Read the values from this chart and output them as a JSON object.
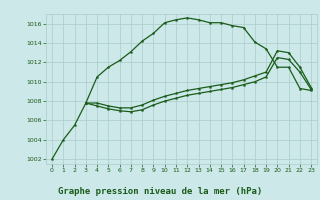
{
  "title": "Graphe pression niveau de la mer (hPa)",
  "bg_color": "#cce8e8",
  "grid_color": "#aacccc",
  "line_color": "#1a5c1a",
  "xlim": [
    -0.5,
    23.5
  ],
  "ylim": [
    1001.5,
    1017.0
  ],
  "yticks": [
    1002,
    1004,
    1006,
    1008,
    1010,
    1012,
    1014,
    1016
  ],
  "xticks": [
    0,
    1,
    2,
    3,
    4,
    5,
    6,
    7,
    8,
    9,
    10,
    11,
    12,
    13,
    14,
    15,
    16,
    17,
    18,
    19,
    20,
    21,
    22,
    23
  ],
  "line1_x": [
    0,
    1,
    2,
    3,
    4,
    5,
    6,
    7,
    8,
    9,
    10,
    11,
    12,
    13,
    14,
    15,
    16,
    17,
    18,
    19,
    20,
    21,
    22,
    23
  ],
  "line1_y": [
    1002.0,
    1004.0,
    1005.5,
    1007.8,
    1010.5,
    1011.5,
    1012.2,
    1013.1,
    1014.2,
    1015.0,
    1016.1,
    1016.4,
    1016.6,
    1016.4,
    1016.1,
    1016.1,
    1015.8,
    1015.6,
    1014.1,
    1013.4,
    1011.5,
    1011.5,
    1009.3,
    1009.1
  ],
  "line2_x": [
    3,
    4,
    5,
    6,
    7,
    8,
    9,
    10,
    11,
    12,
    13,
    14,
    15,
    16,
    17,
    18,
    19,
    20,
    21,
    22,
    23
  ],
  "line2_y": [
    1007.8,
    1007.8,
    1007.5,
    1007.3,
    1007.3,
    1007.6,
    1008.1,
    1008.5,
    1008.8,
    1009.1,
    1009.3,
    1009.5,
    1009.7,
    1009.9,
    1010.2,
    1010.6,
    1011.0,
    1013.2,
    1013.0,
    1011.5,
    1009.4
  ],
  "line3_x": [
    3,
    4,
    5,
    6,
    7,
    8,
    9,
    10,
    11,
    12,
    13,
    14,
    15,
    16,
    17,
    18,
    19,
    20,
    21,
    22,
    23
  ],
  "line3_y": [
    1007.8,
    1007.5,
    1007.2,
    1007.0,
    1006.9,
    1007.1,
    1007.6,
    1008.0,
    1008.3,
    1008.6,
    1008.8,
    1009.0,
    1009.2,
    1009.4,
    1009.7,
    1010.0,
    1010.5,
    1012.5,
    1012.3,
    1011.0,
    1009.2
  ]
}
